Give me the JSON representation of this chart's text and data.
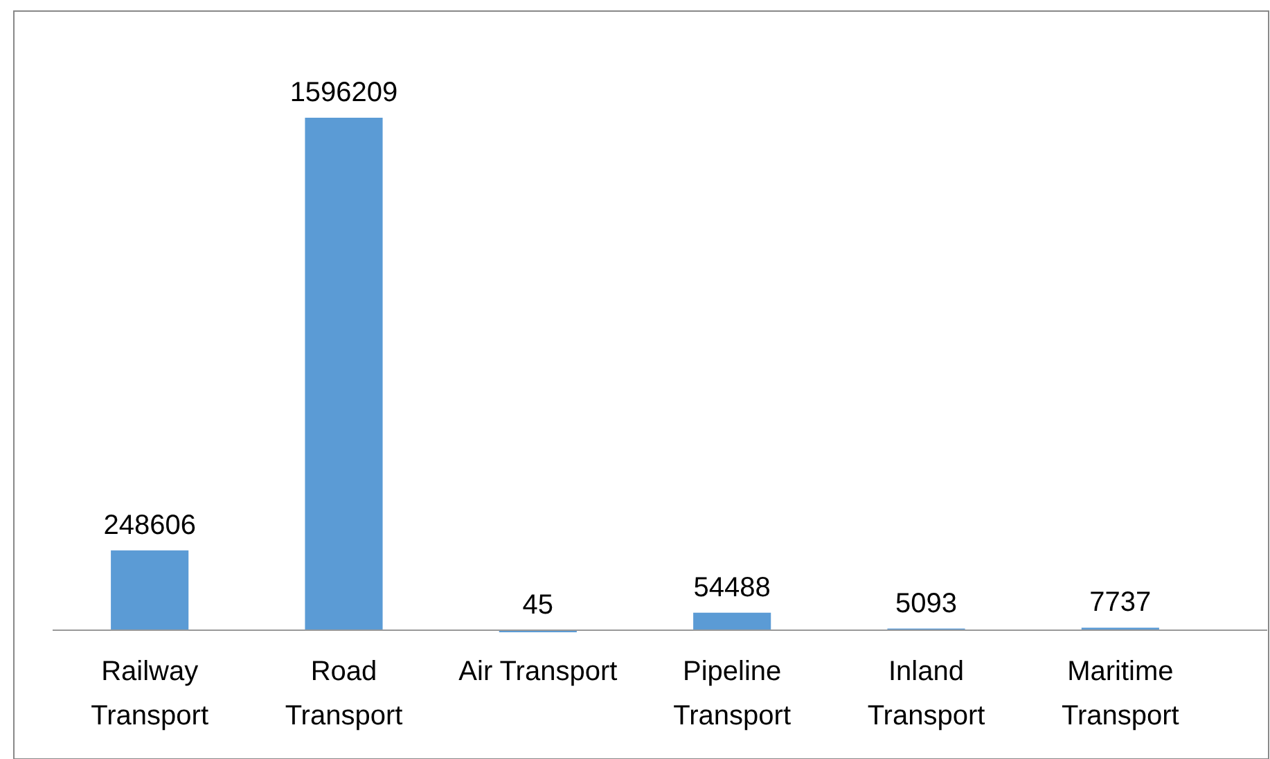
{
  "chart_data": {
    "type": "bar",
    "categories": [
      "Railway Transport",
      "Road Transport",
      "Air Transport",
      "Pipeline Transport",
      "Inland Transport",
      "Maritime Transport"
    ],
    "values": [
      248606,
      1596209,
      45,
      54488,
      5093,
      7737
    ],
    "color": "#5b9bd5",
    "data_labels": true
  }
}
